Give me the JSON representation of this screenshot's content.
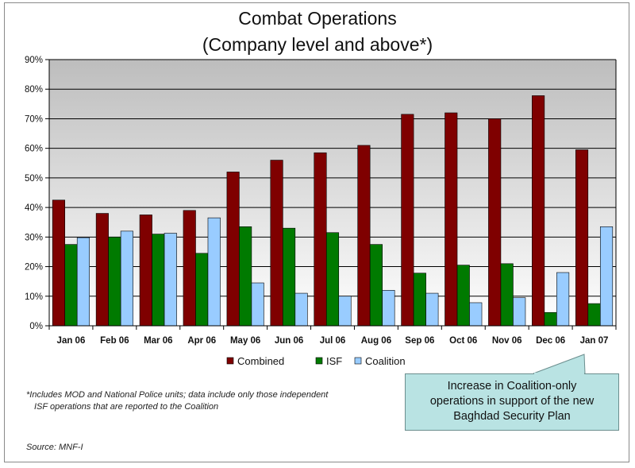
{
  "chart_data": {
    "type": "bar",
    "title_line1": "Combat Operations",
    "title_line2": "(Company level and above*)",
    "categories": [
      "Jan 06",
      "Feb 06",
      "Mar 06",
      "Apr 06",
      "May 06",
      "Jun 06",
      "Jul 06",
      "Aug 06",
      "Sep 06",
      "Oct 06",
      "Nov 06",
      "Dec 06",
      "Jan 07"
    ],
    "series": [
      {
        "name": "Combined",
        "color": "#7f0000",
        "values": [
          42.5,
          38,
          37.5,
          39,
          52,
          56,
          58.5,
          61,
          71.5,
          72,
          70,
          77.8,
          59.5
        ]
      },
      {
        "name": "ISF",
        "color": "#007a00",
        "values": [
          27.5,
          30,
          31,
          24.5,
          33.5,
          33,
          31.5,
          27.5,
          17.8,
          20.5,
          21,
          4.5,
          7.5
        ]
      },
      {
        "name": "Coalition",
        "color": "#99ccff",
        "values": [
          29.8,
          32,
          31.3,
          36.5,
          14.5,
          11,
          10,
          12,
          11,
          7.8,
          9.5,
          18,
          33.5
        ]
      }
    ],
    "yticks": [
      "0%",
      "10%",
      "20%",
      "30%",
      "40%",
      "50%",
      "60%",
      "70%",
      "80%",
      "90%"
    ],
    "ylim": [
      0,
      90
    ],
    "grid": true,
    "legend": "bottom-center"
  },
  "footnote_line1": "*Includes MOD and National Police units; data include only those independent",
  "footnote_line2": "ISF operations that are reported to the Coalition",
  "source": "Source: MNF-I",
  "callout_line1": "Increase in Coalition-only",
  "callout_line2": "operations in support of the new",
  "callout_line3": "Baghdad Security Plan"
}
